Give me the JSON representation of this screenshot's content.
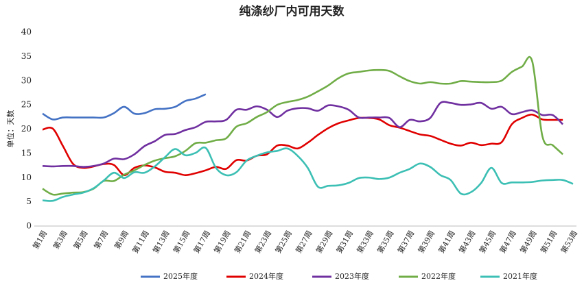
{
  "chart_data": {
    "type": "line",
    "title": "纯涤纱厂内可用天数",
    "y_label": "单位：天数",
    "categories": [
      "第1周",
      null,
      "第3周",
      null,
      "第5周",
      null,
      "第7周",
      null,
      "第9周",
      null,
      "第11周",
      null,
      "第13周",
      null,
      "第15周",
      null,
      "第17周",
      null,
      "第19周",
      null,
      "第21周",
      null,
      "第23周",
      null,
      "第25周",
      null,
      "第27周",
      null,
      "第29周",
      null,
      "第31周",
      null,
      "第33周",
      null,
      "第35周",
      null,
      "第37周",
      null,
      "第39周",
      null,
      "第41周",
      null,
      "第43周",
      null,
      "第45周",
      null,
      "第47周",
      null,
      "第49周",
      null,
      "第51周",
      null,
      "第53周"
    ],
    "series": [
      {
        "name": "2025年度",
        "color": "#4472c4",
        "values": [
          23.2,
          22.0,
          22.4,
          22.4,
          22.4,
          22.4,
          22.4,
          23.3,
          24.6,
          23.2,
          23.3,
          24.1,
          24.2,
          24.6,
          25.8,
          26.3,
          27.2,
          null,
          null,
          null,
          null,
          null,
          null,
          null,
          null,
          null,
          null,
          null,
          null,
          null,
          null,
          null,
          null,
          null,
          null,
          null,
          null,
          null,
          null,
          null,
          null,
          null,
          null,
          null,
          null,
          null,
          null,
          null,
          null,
          null,
          null,
          null,
          null
        ]
      },
      {
        "name": "2024年度",
        "color": "#e00000",
        "values": [
          19.9,
          20.1,
          16.5,
          12.8,
          12.0,
          12.3,
          12.8,
          12.6,
          10.5,
          12.0,
          12.5,
          12.1,
          11.2,
          11.0,
          10.5,
          10.9,
          11.5,
          12.2,
          11.8,
          13.6,
          13.5,
          14.5,
          14.8,
          16.6,
          16.6,
          16.0,
          17.2,
          18.8,
          20.2,
          21.2,
          21.8,
          22.3,
          22.3,
          22.0,
          20.8,
          20.3,
          19.6,
          18.9,
          18.6,
          17.8,
          17.0,
          16.6,
          17.2,
          16.7,
          17.0,
          17.3,
          21.0,
          22.3,
          23.0,
          22.0,
          21.9,
          21.9,
          null
        ]
      },
      {
        "name": "2023年度",
        "color": "#7030a0",
        "values": [
          12.4,
          12.3,
          12.4,
          12.4,
          12.2,
          12.4,
          12.9,
          13.9,
          13.8,
          14.8,
          16.5,
          17.5,
          18.8,
          19.0,
          19.8,
          20.4,
          21.5,
          21.6,
          21.9,
          24.0,
          24.0,
          24.7,
          24.0,
          22.5,
          23.8,
          24.3,
          24.3,
          23.8,
          24.9,
          24.7,
          24.0,
          22.4,
          22.4,
          22.4,
          22.3,
          20.4,
          21.9,
          21.6,
          22.3,
          25.4,
          25.4,
          25.0,
          25.1,
          25.4,
          24.2,
          24.6,
          23.1,
          23.5,
          23.9,
          22.9,
          22.9,
          21.0,
          null
        ]
      },
      {
        "name": "2022年度",
        "color": "#70ad47",
        "values": [
          7.7,
          6.5,
          6.7,
          6.9,
          7.0,
          7.7,
          9.3,
          9.3,
          10.6,
          11.5,
          12.6,
          13.5,
          14.0,
          14.4,
          15.5,
          17.1,
          17.2,
          17.7,
          18.1,
          20.5,
          21.2,
          22.5,
          23.5,
          25.0,
          25.6,
          26.0,
          26.7,
          27.8,
          29.0,
          30.5,
          31.5,
          31.8,
          32.1,
          32.2,
          32.0,
          30.9,
          29.9,
          29.4,
          29.7,
          29.4,
          29.4,
          29.9,
          29.8,
          29.7,
          29.7,
          30.0,
          31.8,
          32.9,
          34.0,
          18.5,
          16.7,
          14.8,
          null
        ]
      },
      {
        "name": "2021年度",
        "color": "#3cbfb4",
        "values": [
          5.3,
          5.2,
          6.0,
          6.5,
          6.9,
          7.8,
          9.4,
          11.0,
          9.9,
          11.1,
          11.0,
          12.3,
          14.2,
          15.9,
          14.6,
          15.1,
          16.1,
          12.0,
          10.5,
          11.1,
          13.5,
          14.5,
          15.2,
          15.5,
          16.0,
          14.5,
          12.0,
          8.1,
          8.3,
          8.4,
          8.9,
          9.9,
          10.0,
          9.7,
          10.0,
          11.0,
          11.8,
          12.9,
          12.2,
          10.5,
          9.5,
          6.7,
          7.0,
          8.9,
          12.0,
          8.9,
          9.0,
          9.0,
          9.1,
          9.4,
          9.5,
          9.5,
          8.7
        ]
      }
    ],
    "ylim": [
      0,
      40
    ],
    "yticks": [
      0,
      5,
      10,
      15,
      20,
      25,
      30,
      35,
      40
    ],
    "grid": false,
    "legend": "bottom"
  }
}
